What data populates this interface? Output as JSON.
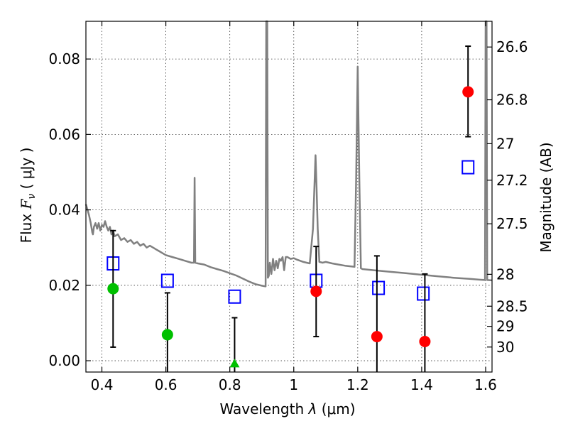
{
  "chart_data": {
    "type": "scatter",
    "title": "",
    "xlabel": "Wavelength",
    "xlabel_symbol": "λ",
    "xlabel_unit": "(μm)",
    "ylabel": "Flux",
    "ylabel_symbol": "F",
    "ylabel_subscript": "ν",
    "ylabel_unit": "( μJy )",
    "y2label": "Magnitude (AB)",
    "xlim": [
      0.35,
      1.62
    ],
    "ylim": [
      -0.003,
      0.09
    ],
    "grid": true,
    "x_ticks": [
      0.4,
      0.6,
      0.8,
      1.0,
      1.2,
      1.4,
      1.6
    ],
    "x_tick_labels": [
      "0.4",
      "0.6",
      "0.8",
      "1",
      "1.2",
      "1.4",
      "1.6"
    ],
    "y_ticks": [
      0.0,
      0.02,
      0.04,
      0.06,
      0.08
    ],
    "y_tick_labels": [
      "0.00",
      "0.02",
      "0.04",
      "0.06",
      "0.08"
    ],
    "y2_ticks": [
      {
        "mag": 26.6,
        "label": "26.6"
      },
      {
        "mag": 26.8,
        "label": "26.8"
      },
      {
        "mag": 27.0,
        "label": "27"
      },
      {
        "mag": 27.2,
        "label": "27.2"
      },
      {
        "mag": 27.5,
        "label": "27.5"
      },
      {
        "mag": 28.0,
        "label": "28"
      },
      {
        "mag": 28.5,
        "label": "28.5"
      },
      {
        "mag": 29.0,
        "label": "29"
      },
      {
        "mag": 30.0,
        "label": "30"
      }
    ],
    "sed_model": {
      "color": "#808080",
      "points": [
        [
          0.35,
          0.0415
        ],
        [
          0.355,
          0.04
        ],
        [
          0.36,
          0.0385
        ],
        [
          0.365,
          0.0365
        ],
        [
          0.37,
          0.034
        ],
        [
          0.372,
          0.0335
        ],
        [
          0.375,
          0.0355
        ],
        [
          0.38,
          0.0365
        ],
        [
          0.385,
          0.035
        ],
        [
          0.39,
          0.0365
        ],
        [
          0.395,
          0.0345
        ],
        [
          0.4,
          0.036
        ],
        [
          0.405,
          0.0355
        ],
        [
          0.41,
          0.037
        ],
        [
          0.415,
          0.0355
        ],
        [
          0.42,
          0.0345
        ],
        [
          0.425,
          0.0355
        ],
        [
          0.43,
          0.0335
        ],
        [
          0.435,
          0.0345
        ],
        [
          0.44,
          0.033
        ],
        [
          0.45,
          0.0335
        ],
        [
          0.46,
          0.032
        ],
        [
          0.47,
          0.0325
        ],
        [
          0.48,
          0.0315
        ],
        [
          0.49,
          0.032
        ],
        [
          0.5,
          0.031
        ],
        [
          0.51,
          0.0315
        ],
        [
          0.52,
          0.0305
        ],
        [
          0.53,
          0.031
        ],
        [
          0.54,
          0.03
        ],
        [
          0.55,
          0.0305
        ],
        [
          0.56,
          0.03
        ],
        [
          0.57,
          0.0295
        ],
        [
          0.58,
          0.029
        ],
        [
          0.59,
          0.0285
        ],
        [
          0.6,
          0.028
        ],
        [
          0.62,
          0.0275
        ],
        [
          0.64,
          0.027
        ],
        [
          0.66,
          0.0265
        ],
        [
          0.68,
          0.026
        ],
        [
          0.688,
          0.026
        ],
        [
          0.69,
          0.0485
        ],
        [
          0.692,
          0.026
        ],
        [
          0.7,
          0.0258
        ],
        [
          0.72,
          0.0255
        ],
        [
          0.74,
          0.0248
        ],
        [
          0.76,
          0.0243
        ],
        [
          0.78,
          0.0238
        ],
        [
          0.8,
          0.0232
        ],
        [
          0.82,
          0.0226
        ],
        [
          0.84,
          0.0218
        ],
        [
          0.86,
          0.021
        ],
        [
          0.88,
          0.0203
        ],
        [
          0.9,
          0.0199
        ],
        [
          0.912,
          0.0197
        ],
        [
          0.914,
          0.09
        ],
        [
          0.917,
          0.09
        ],
        [
          0.919,
          0.022
        ],
        [
          0.922,
          0.0225
        ],
        [
          0.925,
          0.026
        ],
        [
          0.93,
          0.023
        ],
        [
          0.935,
          0.027
        ],
        [
          0.94,
          0.024
        ],
        [
          0.945,
          0.0265
        ],
        [
          0.95,
          0.0245
        ],
        [
          0.955,
          0.027
        ],
        [
          0.96,
          0.0265
        ],
        [
          0.965,
          0.0275
        ],
        [
          0.97,
          0.024
        ],
        [
          0.975,
          0.0275
        ],
        [
          0.98,
          0.0275
        ],
        [
          0.99,
          0.027
        ],
        [
          1.0,
          0.0272
        ],
        [
          1.01,
          0.0268
        ],
        [
          1.02,
          0.0265
        ],
        [
          1.03,
          0.0262
        ],
        [
          1.04,
          0.026
        ],
        [
          1.05,
          0.0258
        ],
        [
          1.06,
          0.035
        ],
        [
          1.065,
          0.047
        ],
        [
          1.068,
          0.0545
        ],
        [
          1.071,
          0.047
        ],
        [
          1.075,
          0.035
        ],
        [
          1.08,
          0.0262
        ],
        [
          1.09,
          0.026
        ],
        [
          1.1,
          0.0262
        ],
        [
          1.12,
          0.0258
        ],
        [
          1.14,
          0.0255
        ],
        [
          1.16,
          0.0252
        ],
        [
          1.18,
          0.025
        ],
        [
          1.19,
          0.0249
        ],
        [
          1.195,
          0.048
        ],
        [
          1.2,
          0.078
        ],
        [
          1.205,
          0.048
        ],
        [
          1.21,
          0.0245
        ],
        [
          1.215,
          0.0243
        ],
        [
          1.25,
          0.024
        ],
        [
          1.3,
          0.0236
        ],
        [
          1.35,
          0.0232
        ],
        [
          1.4,
          0.0228
        ],
        [
          1.45,
          0.0224
        ],
        [
          1.5,
          0.022
        ],
        [
          1.55,
          0.0217
        ],
        [
          1.58,
          0.0215
        ],
        [
          1.598,
          0.0214
        ],
        [
          1.6,
          0.09
        ],
        [
          1.603,
          0.09
        ],
        [
          1.605,
          0.0214
        ],
        [
          1.62,
          0.0213
        ]
      ]
    },
    "model_boxes": {
      "color": "#0000ff",
      "x": [
        0.435,
        0.605,
        0.815,
        1.07,
        1.265,
        1.405,
        1.545
      ],
      "y": [
        0.0258,
        0.0212,
        0.017,
        0.0212,
        0.0193,
        0.0178,
        0.0513
      ]
    },
    "observed_points": [
      {
        "x": 0.435,
        "y": 0.0191,
        "err_low": 0.0036,
        "err_high": 0.0345,
        "color": "#00c000",
        "marker": "circle"
      },
      {
        "x": 0.605,
        "y": 0.0069,
        "err_low": -0.003,
        "err_high": 0.018,
        "color": "#00c000",
        "marker": "circle"
      },
      {
        "x": 0.815,
        "y": -0.0008,
        "err_low": -0.003,
        "err_high": 0.0114,
        "color": "#00c000",
        "marker": "triangle"
      },
      {
        "x": 1.07,
        "y": 0.0184,
        "err_low": 0.0064,
        "err_high": 0.0303,
        "color": "#ff0000",
        "marker": "circle"
      },
      {
        "x": 1.26,
        "y": 0.0064,
        "err_low": -0.003,
        "err_high": 0.0278,
        "color": "#ff0000",
        "marker": "circle"
      },
      {
        "x": 1.41,
        "y": 0.0051,
        "err_low": -0.003,
        "err_high": 0.023,
        "color": "#ff0000",
        "marker": "circle"
      },
      {
        "x": 1.545,
        "y": 0.0713,
        "err_low": 0.0594,
        "err_high": 0.0834,
        "color": "#ff0000",
        "marker": "circle"
      }
    ]
  }
}
